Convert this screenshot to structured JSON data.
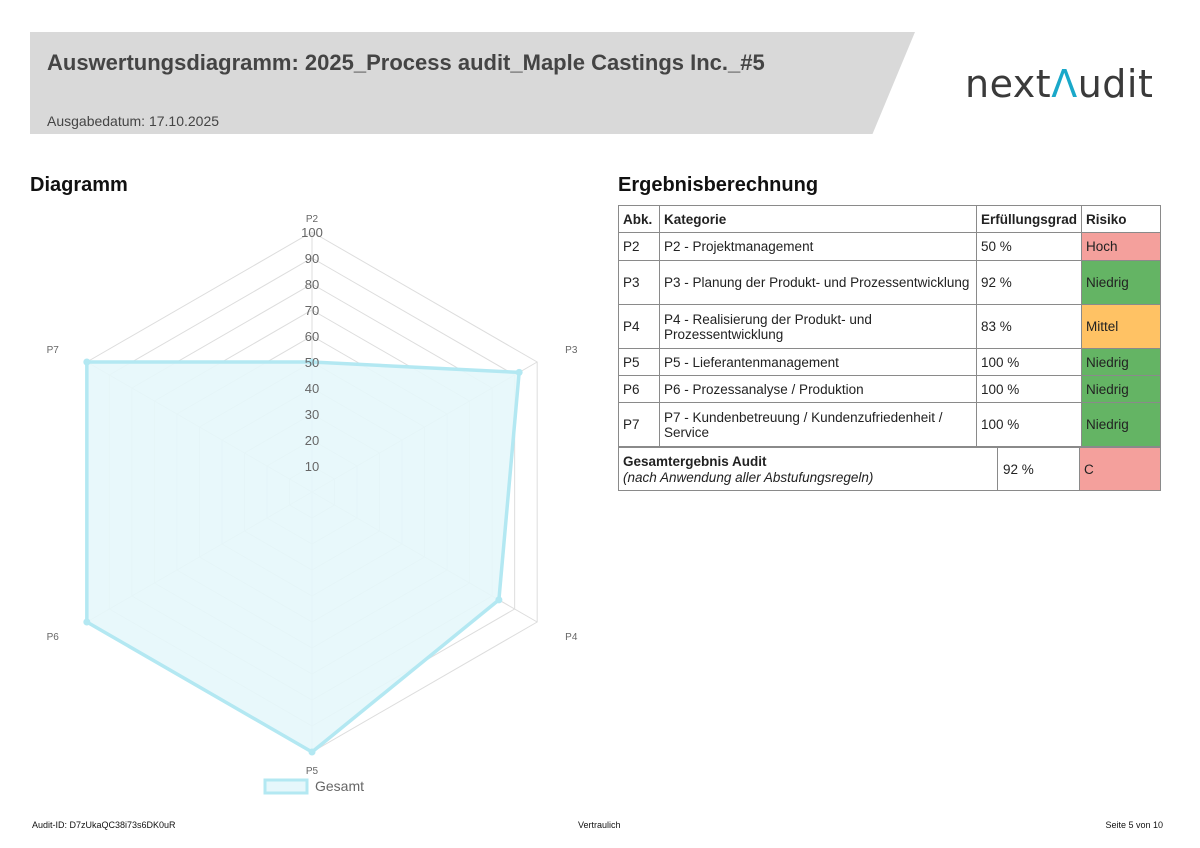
{
  "header": {
    "title": "Auswertungsdiagramm: 2025_Process audit_Maple Castings Inc._#5",
    "issue_date": "Ausgabedatum: 17.10.2025",
    "logo_left": "nex",
    "logo_mid": "t",
    "logo_accent": "Λ",
    "logo_right": "udit"
  },
  "left": {
    "title": "Diagramm"
  },
  "right": {
    "title": "Ergebnisberechnung"
  },
  "chart_data": {
    "type": "radar",
    "categories": [
      "P2",
      "P3",
      "P4",
      "P5",
      "P6",
      "P7"
    ],
    "series": [
      {
        "name": "Gesamt",
        "values": [
          50,
          92,
          83,
          100,
          100,
          100
        ]
      }
    ],
    "rlim": [
      0,
      100
    ],
    "ticks": [
      "10",
      "20",
      "30",
      "40",
      "50",
      "60",
      "70",
      "80",
      "90",
      "100"
    ],
    "legend_position": "bottom",
    "colors": {
      "line": "#b3e8f2",
      "fill": "#e6f7fb",
      "grid": "#dddddd",
      "label": "#666666"
    }
  },
  "table": {
    "headers": [
      "Abk.",
      "Kategorie",
      "Erfüllungsgrad",
      "Risiko"
    ],
    "rows": [
      {
        "abk": "P2",
        "kategorie": "P2 - Projektmanagement",
        "grad": "50 %",
        "risiko": "Hoch",
        "color": "#f4a09c"
      },
      {
        "abk": "P3",
        "kategorie": "P3 - Planung der Produkt- und Prozessentwicklung",
        "grad": "92 %",
        "risiko": "Niedrig",
        "color": "#64b464"
      },
      {
        "abk": "P4",
        "kategorie": "P4 - Realisierung der Produkt- und Prozessentwicklung",
        "grad": "83 %",
        "risiko": "Mittel",
        "color": "#ffc264"
      },
      {
        "abk": "P5",
        "kategorie": "P5 - Lieferantenmanagement",
        "grad": "100 %",
        "risiko": "Niedrig",
        "color": "#64b464"
      },
      {
        "abk": "P6",
        "kategorie": "P6 - Prozessanalyse / Produktion",
        "grad": "100 %",
        "risiko": "Niedrig",
        "color": "#64b464"
      },
      {
        "abk": "P7",
        "kategorie": "P7 - Kundenbetreuung / Kundenzufriedenheit / Service",
        "grad": "100 %",
        "risiko": "Niedrig",
        "color": "#64b464"
      }
    ],
    "total": {
      "label": "Gesamtergebnis Audit",
      "note": "(nach Anwendung aller Abstufungsregeln)",
      "value": "92 %",
      "risiko": "C",
      "color": "#f4a09c"
    }
  },
  "footer": {
    "audit_id": "Audit-ID: D7zUkaQC38i73s6DK0uR",
    "confidential": "Vertraulich",
    "page": "Seite 5 von 10"
  }
}
